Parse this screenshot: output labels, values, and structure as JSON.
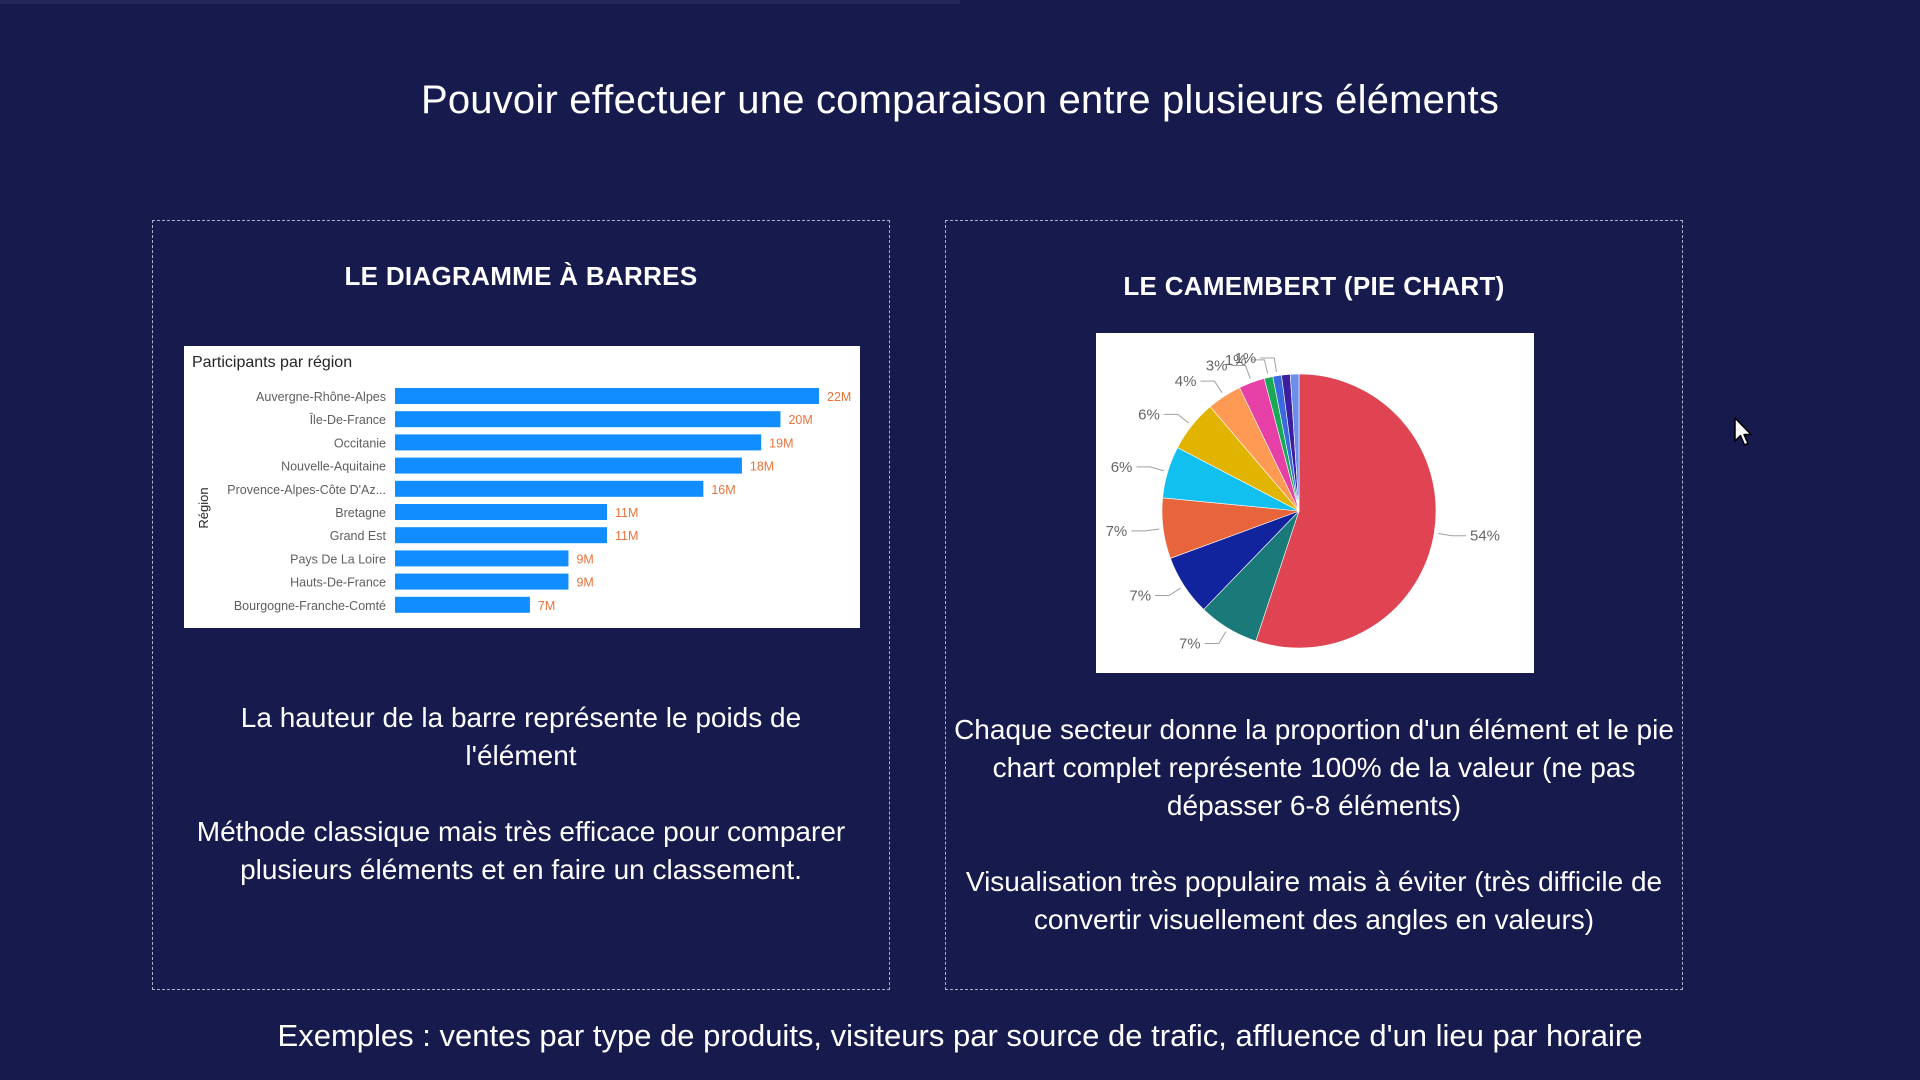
{
  "slide": {
    "title": "Pouvoir effectuer une comparaison entre plusieurs éléments",
    "footer": "Exemples : ventes par type de produits, visiteurs par source de trafic, affluence d'un lieu par horaire"
  },
  "left_panel": {
    "heading": "LE DIAGRAMME À BARRES",
    "paragraphs": [
      "La hauteur de la barre représente le poids de l'élément",
      "Méthode classique mais très efficace pour comparer plusieurs éléments et en faire un classement."
    ]
  },
  "right_panel": {
    "heading": "LE CAMEMBERT (PIE CHART)",
    "paragraphs": [
      "Chaque secteur donne la proportion d'un élément et le pie chart complet représente 100% de la valeur (ne pas dépasser 6-8 éléments)",
      "Visualisation très populaire mais à éviter (très difficile de convertir visuellement des angles en valeurs)"
    ]
  },
  "colors": {
    "background": "#161a4c",
    "bar": "#118dff",
    "bar_label": "#e8743b",
    "pie": [
      "#e04452",
      "#1a7a7a",
      "#12239e",
      "#e8643a",
      "#12c0f0",
      "#e0b400",
      "#ff9a55",
      "#e63fa5",
      "#1aaa55",
      "#3a6ae0",
      "#3b1fa0",
      "#6b8fe8"
    ]
  },
  "chart_data": [
    {
      "type": "bar",
      "orientation": "horizontal",
      "title": "Participants par région",
      "ylabel": "Région",
      "categories": [
        "Auvergne-Rhône-Alpes",
        "Île-De-France",
        "Occitanie",
        "Nouvelle-Aquitaine",
        "Provence-Alpes-Côte D'Az...",
        "Bretagne",
        "Grand Est",
        "Pays De La Loire",
        "Hauts-De-France",
        "Bourgogne-Franche-Comté"
      ],
      "values": [
        22,
        20,
        19,
        18,
        16,
        11,
        11,
        9,
        9,
        7
      ],
      "data_labels": [
        "22M",
        "20M",
        "19M",
        "18M",
        "16M",
        "11M",
        "11M",
        "9M",
        "9M",
        "7M"
      ],
      "xlim": [
        0,
        22
      ],
      "grid": false,
      "legend": "none"
    },
    {
      "type": "pie",
      "values": [
        54,
        7,
        7,
        7,
        6,
        6,
        4,
        3,
        1,
        1,
        1,
        1
      ],
      "data_labels": [
        "54%",
        "7%",
        "7%",
        "7%",
        "6%",
        "6%",
        "4%",
        "3%",
        "1%",
        "1%",
        "",
        ""
      ],
      "legend": "none"
    }
  ]
}
